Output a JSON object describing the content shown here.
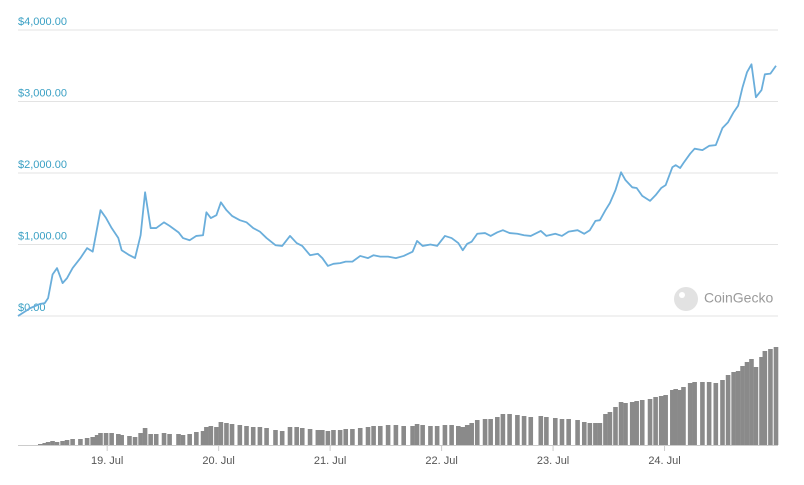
{
  "chart_data": {
    "type": "line",
    "color": "#6aaedb",
    "grid": true,
    "xlim": [
      18.2,
      25.0
    ],
    "xticks": [
      {
        "value": 19,
        "label": "19. Jul"
      },
      {
        "value": 20,
        "label": "20. Jul"
      },
      {
        "value": 21,
        "label": "21. Jul"
      },
      {
        "value": 22,
        "label": "22. Jul"
      },
      {
        "value": 23,
        "label": "23. Jul"
      },
      {
        "value": 24,
        "label": "24. Jul"
      }
    ],
    "ylim": [
      0,
      4000
    ],
    "yticks": [
      {
        "value": 0,
        "label": "$0.00"
      },
      {
        "value": 1000,
        "label": "$1,000.00"
      },
      {
        "value": 2000,
        "label": "$2,000.00"
      },
      {
        "value": 3000,
        "label": "$3,000.00"
      },
      {
        "value": 4000,
        "label": "$4,000.00"
      }
    ],
    "watermark": "CoinGecko",
    "x": [
      18.2,
      18.31,
      18.4,
      18.44,
      18.47,
      18.51,
      18.55,
      18.6,
      18.64,
      18.69,
      18.76,
      18.82,
      18.87,
      18.91,
      18.94,
      18.99,
      19.04,
      19.1,
      19.13,
      19.2,
      19.25,
      19.3,
      19.34,
      19.39,
      19.44,
      19.51,
      19.56,
      19.64,
      19.68,
      19.74,
      19.8,
      19.86,
      19.89,
      19.93,
      19.98,
      20.02,
      20.07,
      20.12,
      20.19,
      20.25,
      20.31,
      20.37,
      20.43,
      20.51,
      20.57,
      20.64,
      20.7,
      20.75,
      20.82,
      20.89,
      20.93,
      20.98,
      21.03,
      21.09,
      21.14,
      21.2,
      21.27,
      21.34,
      21.39,
      21.45,
      21.52,
      21.59,
      21.66,
      21.74,
      21.78,
      21.83,
      21.9,
      21.96,
      22.03,
      22.09,
      22.15,
      22.19,
      22.23,
      22.27,
      22.32,
      22.39,
      22.44,
      22.5,
      22.55,
      22.61,
      22.68,
      22.74,
      22.8,
      22.89,
      22.94,
      23.02,
      23.08,
      23.14,
      23.22,
      23.28,
      23.33,
      23.38,
      23.42,
      23.47,
      23.51,
      23.56,
      23.61,
      23.65,
      23.71,
      23.75,
      23.8,
      23.87,
      23.92,
      23.97,
      24.01,
      24.07,
      24.1,
      24.14,
      24.17,
      24.23,
      24.27,
      24.34,
      24.4,
      24.46,
      24.52,
      24.57,
      24.62,
      24.66,
      24.7,
      24.74,
      24.78,
      24.82,
      24.87,
      24.9,
      24.95,
      25.0
    ],
    "values": [
      0,
      110,
      170,
      180,
      250,
      580,
      670,
      460,
      530,
      670,
      810,
      950,
      900,
      1230,
      1480,
      1370,
      1230,
      1090,
      920,
      850,
      810,
      1130,
      1730,
      1230,
      1230,
      1310,
      1260,
      1170,
      1090,
      1060,
      1120,
      1130,
      1450,
      1370,
      1410,
      1590,
      1480,
      1400,
      1340,
      1310,
      1230,
      1180,
      1090,
      990,
      980,
      1120,
      1020,
      980,
      850,
      870,
      810,
      700,
      730,
      740,
      760,
      760,
      840,
      810,
      850,
      830,
      830,
      810,
      840,
      900,
      1050,
      980,
      1000,
      980,
      1120,
      1090,
      1020,
      920,
      1010,
      1040,
      1150,
      1160,
      1120,
      1170,
      1200,
      1160,
      1150,
      1130,
      1120,
      1190,
      1120,
      1150,
      1120,
      1180,
      1200,
      1150,
      1200,
      1330,
      1340,
      1480,
      1580,
      1760,
      2010,
      1900,
      1800,
      1790,
      1680,
      1610,
      1690,
      1790,
      1830,
      2080,
      2110,
      2070,
      2140,
      2270,
      2340,
      2320,
      2380,
      2390,
      2630,
      2710,
      2850,
      2940,
      3200,
      3410,
      3520,
      3060,
      3160,
      3380,
      3390,
      3500
    ],
    "volume": {
      "type": "bar",
      "color": "#8a8a8a",
      "ylim": [
        0,
        100
      ],
      "values": [
        0,
        0,
        1,
        2,
        3,
        4,
        3,
        4,
        5,
        6,
        6,
        7,
        8,
        10,
        12,
        12,
        12,
        11,
        10,
        9,
        8,
        12,
        17,
        11,
        11,
        12,
        11,
        11,
        10,
        11,
        13,
        14,
        18,
        19,
        18,
        23,
        22,
        21,
        20,
        19,
        18,
        18,
        17,
        15,
        14,
        18,
        18,
        17,
        16,
        15,
        15,
        14,
        15,
        15,
        16,
        16,
        17,
        18,
        19,
        19,
        20,
        20,
        19,
        19,
        21,
        20,
        19,
        19,
        20,
        20,
        19,
        18,
        20,
        22,
        25,
        26,
        26,
        28,
        31,
        31,
        30,
        29,
        28,
        29,
        28,
        27,
        26,
        26,
        25,
        23,
        22,
        22,
        22,
        31,
        33,
        38,
        43,
        42,
        43,
        44,
        45,
        46,
        48,
        49,
        50,
        55,
        56,
        55,
        58,
        62,
        63,
        63,
        63,
        62,
        65,
        70,
        73,
        74,
        79,
        83,
        86,
        78,
        88,
        94,
        96,
        98
      ]
    }
  }
}
